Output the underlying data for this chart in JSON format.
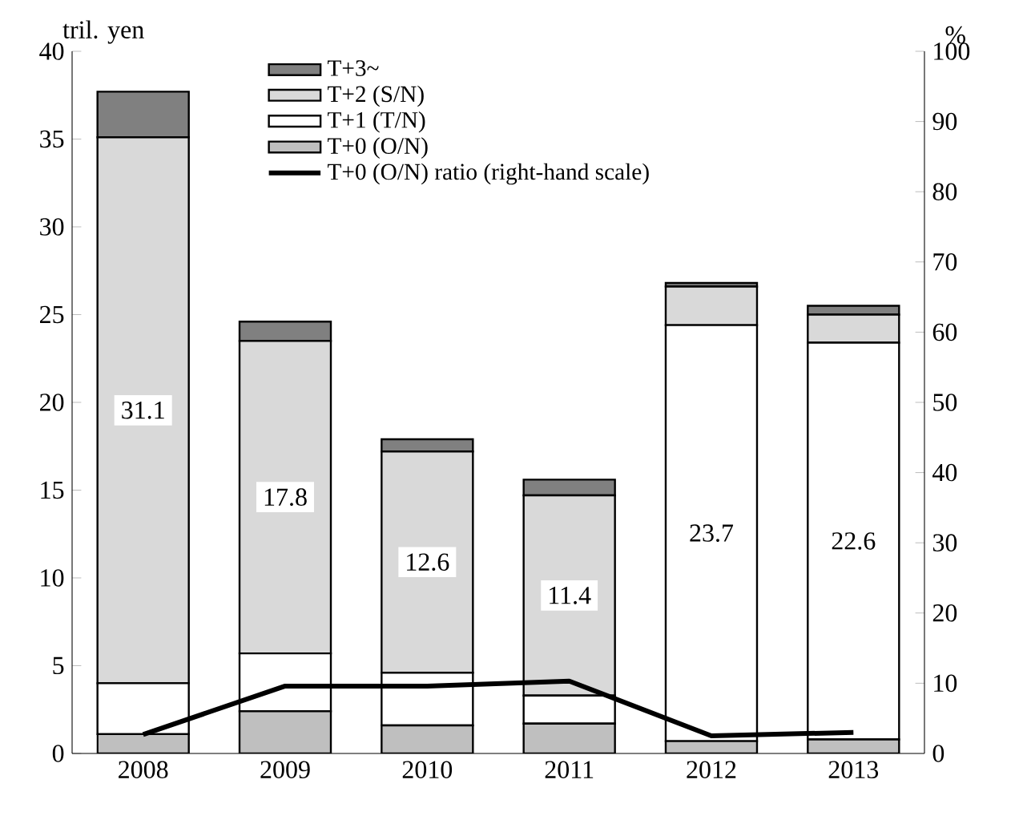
{
  "chart_data": {
    "type": "bar",
    "stacked": true,
    "ylabel": "tril. yen",
    "y2label": "%",
    "categories": [
      "2008",
      "2009",
      "2010",
      "2011",
      "2012",
      "2013"
    ],
    "series": [
      {
        "name": "T+0 (O/N)",
        "color": "#bfbfbf",
        "values": [
          1.1,
          2.4,
          1.6,
          1.7,
          0.7,
          0.8
        ]
      },
      {
        "name": "T+1 (T/N)",
        "color": "#ffffff",
        "values": [
          2.9,
          3.3,
          3.0,
          1.6,
          23.7,
          22.6
        ],
        "value_labels": [
          null,
          null,
          null,
          null,
          "23.7",
          "22.6"
        ]
      },
      {
        "name": "T+2 (S/N)",
        "color": "#d9d9d9",
        "values": [
          31.1,
          17.8,
          12.6,
          11.4,
          2.2,
          1.6
        ],
        "value_labels": [
          "31.1",
          "17.8",
          "12.6",
          "11.4",
          null,
          null
        ]
      },
      {
        "name": "T+3~",
        "color": "#808080",
        "values": [
          2.6,
          1.1,
          0.7,
          0.9,
          0.2,
          0.5
        ]
      },
      {
        "name": "T+0 (O/N) ratio (right-hand scale)",
        "type": "line",
        "axis": "y2",
        "color": "#000000",
        "values": [
          2.7,
          9.6,
          9.6,
          10.3,
          2.5,
          3.0
        ]
      }
    ],
    "ylim": [
      0,
      40
    ],
    "yticks": [
      0,
      5,
      10,
      15,
      20,
      25,
      30,
      35,
      40
    ],
    "y2lim": [
      0,
      100
    ],
    "y2ticks": [
      0,
      10,
      20,
      30,
      40,
      50,
      60,
      70,
      80,
      90,
      100
    ],
    "legend": "top"
  }
}
